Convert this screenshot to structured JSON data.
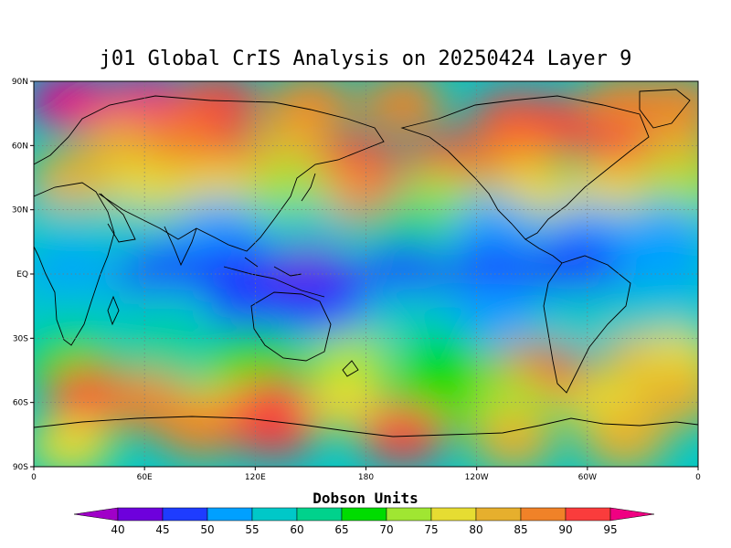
{
  "title": "j01 Global CrIS Analysis on 20250424 Layer 9",
  "map": {
    "lat_ticks": [
      {
        "lat": 90,
        "label": "90N"
      },
      {
        "lat": 60,
        "label": "60N"
      },
      {
        "lat": 30,
        "label": "30N"
      },
      {
        "lat": 0,
        "label": "EQ"
      },
      {
        "lat": -30,
        "label": "30S"
      },
      {
        "lat": -60,
        "label": "60S"
      },
      {
        "lat": -90,
        "label": "90S"
      }
    ],
    "lon_ticks": [
      {
        "lon": 0,
        "label": "0"
      },
      {
        "lon": 60,
        "label": "60E"
      },
      {
        "lon": 120,
        "label": "120E"
      },
      {
        "lon": 180,
        "label": "180"
      },
      {
        "lon": 240,
        "label": "120W"
      },
      {
        "lon": 300,
        "label": "60W"
      },
      {
        "lon": 360,
        "label": "0"
      }
    ],
    "lon_range": [
      0,
      360
    ],
    "lat_range": [
      -90,
      90
    ],
    "grid": "dotted"
  },
  "colorbar": {
    "title": "Dobson Units",
    "levels": [
      40,
      45,
      50,
      55,
      60,
      65,
      70,
      75,
      80,
      85,
      90,
      95
    ],
    "colors": [
      "#a000c8",
      "#6e00dc",
      "#1e3cff",
      "#00a0ff",
      "#00c8c8",
      "#00d28c",
      "#00dc00",
      "#a0e632",
      "#e6dc32",
      "#e6af2d",
      "#f08228",
      "#fa3c3c",
      "#f00082"
    ]
  },
  "fields": [
    {
      "lon": 20,
      "lat": 80,
      "value": 95
    },
    {
      "lon": 60,
      "lat": 80,
      "value": 95
    },
    {
      "lon": 100,
      "lat": 80,
      "value": 92
    },
    {
      "lon": 150,
      "lat": 80,
      "value": 88
    },
    {
      "lon": 200,
      "lat": 80,
      "value": 86
    },
    {
      "lon": 260,
      "lat": 72,
      "value": 93
    },
    {
      "lon": 280,
      "lat": 70,
      "value": 93
    },
    {
      "lon": 320,
      "lat": 80,
      "value": 88
    },
    {
      "lon": 350,
      "lat": 80,
      "value": 87
    },
    {
      "lon": 50,
      "lat": 60,
      "value": 80
    },
    {
      "lon": 80,
      "lat": 62,
      "value": 88
    },
    {
      "lon": 110,
      "lat": 52,
      "value": 93
    },
    {
      "lon": 140,
      "lat": 60,
      "value": 84
    },
    {
      "lon": 175,
      "lat": 52,
      "value": 90
    },
    {
      "lon": 225,
      "lat": 52,
      "value": 90
    },
    {
      "lon": 262,
      "lat": 55,
      "value": 86
    },
    {
      "lon": 320,
      "lat": 55,
      "value": 91
    },
    {
      "lon": 350,
      "lat": 55,
      "value": 82
    },
    {
      "lon": 20,
      "lat": 45,
      "value": 84
    },
    {
      "lon": 60,
      "lat": 40,
      "value": 76
    },
    {
      "lon": 100,
      "lat": 40,
      "value": 78
    },
    {
      "lon": 140,
      "lat": 40,
      "value": 72
    },
    {
      "lon": 180,
      "lat": 35,
      "value": 80
    },
    {
      "lon": 195,
      "lat": 30,
      "value": 90
    },
    {
      "lon": 220,
      "lat": 35,
      "value": 74
    },
    {
      "lon": 270,
      "lat": 38,
      "value": 76
    },
    {
      "lon": 310,
      "lat": 38,
      "value": 78
    },
    {
      "lon": 350,
      "lat": 38,
      "value": 72
    },
    {
      "lon": 10,
      "lat": 20,
      "value": 55
    },
    {
      "lon": 50,
      "lat": 20,
      "value": 55
    },
    {
      "lon": 100,
      "lat": 22,
      "value": 52
    },
    {
      "lon": 150,
      "lat": 20,
      "value": 55
    },
    {
      "lon": 200,
      "lat": 22,
      "value": 60
    },
    {
      "lon": 250,
      "lat": 22,
      "value": 52
    },
    {
      "lon": 300,
      "lat": 20,
      "value": 52
    },
    {
      "lon": 340,
      "lat": 20,
      "value": 50
    },
    {
      "lon": 20,
      "lat": 0,
      "value": 52
    },
    {
      "lon": 70,
      "lat": 0,
      "value": 49
    },
    {
      "lon": 110,
      "lat": 2,
      "value": 47
    },
    {
      "lon": 150,
      "lat": 0,
      "value": 43
    },
    {
      "lon": 200,
      "lat": 0,
      "value": 47
    },
    {
      "lon": 250,
      "lat": 0,
      "value": 48
    },
    {
      "lon": 295,
      "lat": 4,
      "value": 46
    },
    {
      "lon": 340,
      "lat": 0,
      "value": 52
    },
    {
      "lon": 20,
      "lat": -20,
      "value": 56
    },
    {
      "lon": 70,
      "lat": -20,
      "value": 56
    },
    {
      "lon": 120,
      "lat": -15,
      "value": 45
    },
    {
      "lon": 160,
      "lat": -15,
      "value": 48
    },
    {
      "lon": 200,
      "lat": -20,
      "value": 56
    },
    {
      "lon": 250,
      "lat": -18,
      "value": 54
    },
    {
      "lon": 300,
      "lat": -20,
      "value": 56
    },
    {
      "lon": 340,
      "lat": -20,
      "value": 55
    },
    {
      "lon": 20,
      "lat": -40,
      "value": 68
    },
    {
      "lon": 70,
      "lat": -38,
      "value": 64
    },
    {
      "lon": 120,
      "lat": -38,
      "value": 65
    },
    {
      "lon": 170,
      "lat": -40,
      "value": 72
    },
    {
      "lon": 220,
      "lat": -42,
      "value": 68
    },
    {
      "lon": 270,
      "lat": -45,
      "value": 84
    },
    {
      "lon": 280,
      "lat": -50,
      "value": 92
    },
    {
      "lon": 330,
      "lat": -42,
      "value": 84
    },
    {
      "lon": 350,
      "lat": -40,
      "value": 78
    },
    {
      "lon": 30,
      "lat": -57,
      "value": 93
    },
    {
      "lon": 60,
      "lat": -60,
      "value": 88
    },
    {
      "lon": 100,
      "lat": -62,
      "value": 76
    },
    {
      "lon": 130,
      "lat": -62,
      "value": 93
    },
    {
      "lon": 170,
      "lat": -60,
      "value": 78
    },
    {
      "lon": 220,
      "lat": -60,
      "value": 66
    },
    {
      "lon": 260,
      "lat": -60,
      "value": 72
    },
    {
      "lon": 310,
      "lat": -60,
      "value": 78
    },
    {
      "lon": 350,
      "lat": -58,
      "value": 80
    },
    {
      "lon": 20,
      "lat": -80,
      "value": 78
    },
    {
      "lon": 90,
      "lat": -72,
      "value": 85
    },
    {
      "lon": 130,
      "lat": -72,
      "value": 92
    },
    {
      "lon": 200,
      "lat": -75,
      "value": 90
    },
    {
      "lon": 260,
      "lat": -78,
      "value": 82
    },
    {
      "lon": 320,
      "lat": -78,
      "value": 80
    }
  ]
}
